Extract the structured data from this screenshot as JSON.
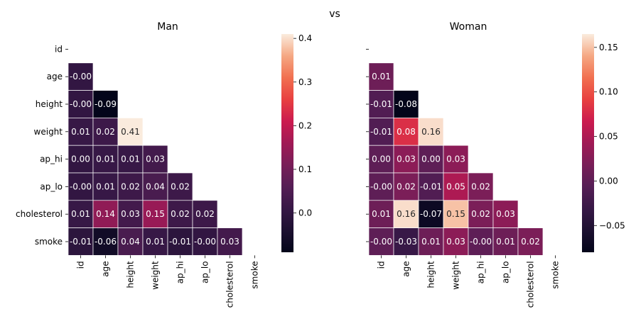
{
  "figure_title": "vs",
  "chart_data": [
    {
      "type": "heatmap",
      "title": "Man",
      "labels": [
        "id",
        "age",
        "height",
        "weight",
        "ap_hi",
        "ap_lo",
        "cholesterol",
        "smoke"
      ],
      "lower_triangle": [
        [],
        [
          -0.0
        ],
        [
          -0.0,
          -0.09
        ],
        [
          0.01,
          0.02,
          0.41
        ],
        [
          0.0,
          0.01,
          0.01,
          0.03
        ],
        [
          -0.0,
          0.01,
          0.02,
          0.04,
          0.02
        ],
        [
          0.01,
          0.14,
          0.03,
          0.15,
          0.02,
          0.02
        ],
        [
          -0.01,
          -0.06,
          0.04,
          0.01,
          -0.01,
          -0.0,
          0.03
        ]
      ],
      "cell_text": [
        [],
        [
          "-0.00"
        ],
        [
          "-0.00",
          "-0.09"
        ],
        [
          "0.01",
          "0.02",
          "0.41"
        ],
        [
          "0.00",
          "0.01",
          "0.01",
          "0.03"
        ],
        [
          "-0.00",
          "0.01",
          "0.02",
          "0.04",
          "0.02"
        ],
        [
          "0.01",
          "0.14",
          "0.03",
          "0.15",
          "0.02",
          "0.02"
        ],
        [
          "-0.01",
          "-0.06",
          "0.04",
          "0.01",
          "-0.01",
          "-0.00",
          "0.03"
        ]
      ],
      "color_range": [
        -0.09,
        0.41
      ],
      "colorbar_ticks": [
        0.0,
        0.1,
        0.2,
        0.3,
        0.4
      ],
      "colorbar_tick_labels": [
        "0.0",
        "0.1",
        "0.2",
        "0.3",
        "0.4"
      ],
      "show_y_tick_labels": true,
      "colormap": "rocket"
    },
    {
      "type": "heatmap",
      "title": "Woman",
      "labels": [
        "id",
        "age",
        "height",
        "weight",
        "ap_hi",
        "ap_lo",
        "cholesterol",
        "smoke"
      ],
      "lower_triangle": [
        [],
        [
          0.01
        ],
        [
          -0.01,
          -0.08
        ],
        [
          -0.01,
          0.08,
          0.16
        ],
        [
          0.0,
          0.03,
          0.0,
          0.03
        ],
        [
          -0.0,
          0.02,
          -0.01,
          0.05,
          0.02
        ],
        [
          0.01,
          0.16,
          -0.07,
          0.15,
          0.02,
          0.03
        ],
        [
          -0.0,
          -0.03,
          0.01,
          0.03,
          -0.0,
          0.01,
          0.02
        ]
      ],
      "cell_text": [
        [],
        [
          "0.01"
        ],
        [
          "-0.01",
          "-0.08"
        ],
        [
          "-0.01",
          "0.08",
          "0.16"
        ],
        [
          "0.00",
          "0.03",
          "0.00",
          "0.03"
        ],
        [
          "-0.00",
          "0.02",
          "-0.01",
          "0.05",
          "0.02"
        ],
        [
          "0.01",
          "0.16",
          "-0.07",
          "0.15",
          "0.02",
          "0.03"
        ],
        [
          "-0.00",
          "-0.03",
          "0.01",
          "0.03",
          "-0.00",
          "0.01",
          "0.02"
        ]
      ],
      "color_range": [
        -0.08,
        0.165
      ],
      "colorbar_ticks": [
        -0.05,
        0.0,
        0.05,
        0.1,
        0.15
      ],
      "colorbar_tick_labels": [
        "−0.05",
        "0.00",
        "0.05",
        "0.10",
        "0.15"
      ],
      "show_y_tick_labels": false,
      "colormap": "rocket"
    }
  ]
}
